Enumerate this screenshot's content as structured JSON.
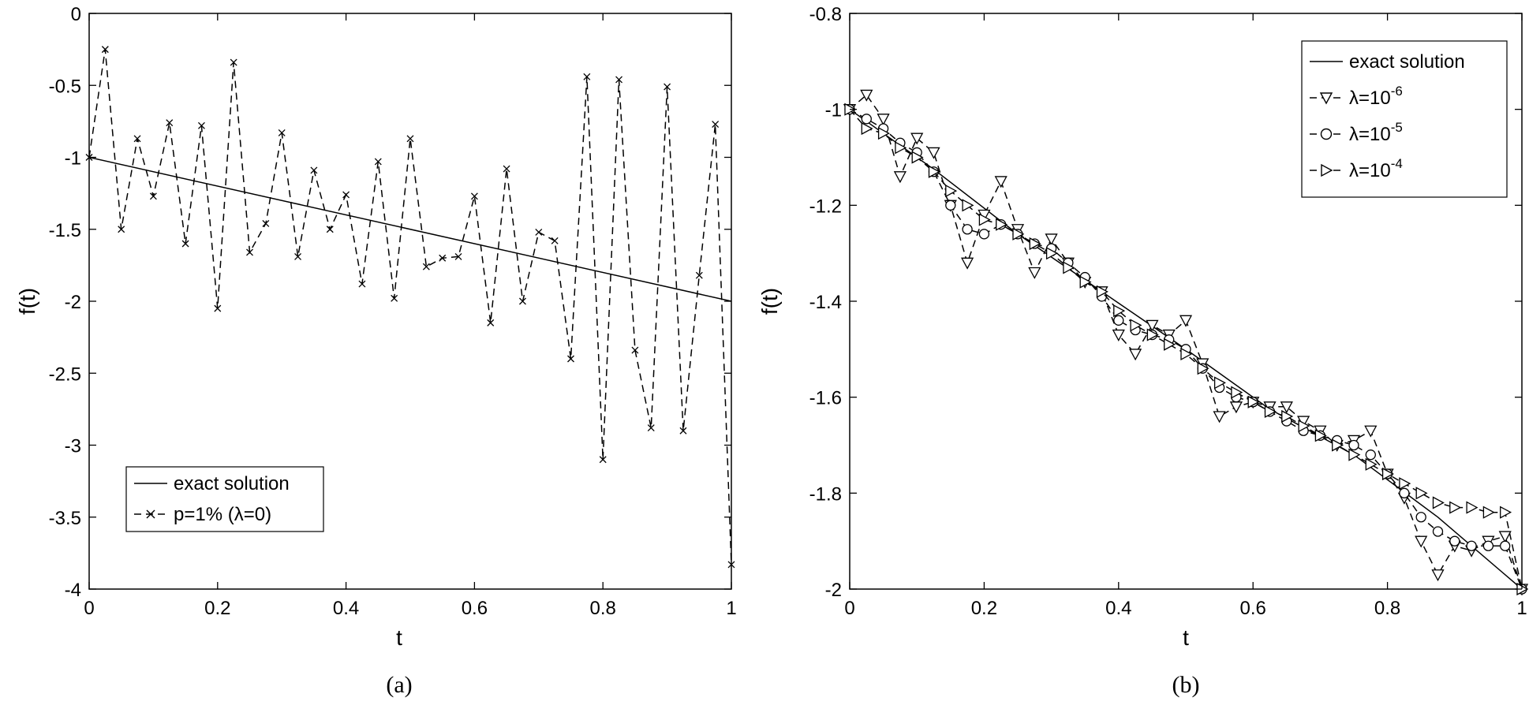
{
  "chart_data": [
    {
      "type": "line",
      "panel": "(a)",
      "xlabel": "t",
      "ylabel": "f(t)",
      "xlim": [
        0,
        1
      ],
      "ylim": [
        -4,
        0
      ],
      "xticks": [
        0,
        0.2,
        0.4,
        0.6,
        0.8,
        1
      ],
      "xtick_labels": [
        "0",
        "0.2",
        "0.4",
        "0.6",
        "0.8",
        "1"
      ],
      "yticks": [
        0,
        -0.5,
        -1,
        -1.5,
        -2,
        -2.5,
        -3,
        -3.5,
        -4
      ],
      "ytick_labels": [
        "0",
        "-0.5",
        "-1",
        "-1.5",
        "-2",
        "-2.5",
        "-3",
        "-3.5",
        "-4"
      ],
      "grid": false,
      "legend_position": "bottom-left",
      "series": [
        {
          "name": "exact solution",
          "style": "solid",
          "marker": "none",
          "x": [
            0,
            1
          ],
          "y": [
            -1,
            -2
          ]
        },
        {
          "name": "p=1% (λ=0)",
          "style": "dashed",
          "marker": "x",
          "x": [
            0,
            0.025,
            0.05,
            0.075,
            0.1,
            0.125,
            0.15,
            0.175,
            0.2,
            0.225,
            0.25,
            0.275,
            0.3,
            0.325,
            0.35,
            0.375,
            0.4,
            0.425,
            0.45,
            0.475,
            0.5,
            0.525,
            0.55,
            0.575,
            0.6,
            0.625,
            0.65,
            0.675,
            0.7,
            0.725,
            0.75,
            0.775,
            0.8,
            0.825,
            0.85,
            0.875,
            0.9,
            0.925,
            0.95,
            0.975,
            1
          ],
          "y": [
            -1.0,
            -0.25,
            -1.5,
            -0.87,
            -1.27,
            -0.76,
            -1.6,
            -0.78,
            -2.05,
            -0.34,
            -1.66,
            -1.46,
            -0.83,
            -1.69,
            -1.09,
            -1.5,
            -1.26,
            -1.88,
            -1.03,
            -1.98,
            -0.87,
            -1.76,
            -1.7,
            -1.69,
            -1.27,
            -2.15,
            -1.08,
            -2.0,
            -1.52,
            -1.58,
            -2.4,
            -0.44,
            -3.1,
            -0.46,
            -2.34,
            -2.88,
            -0.51,
            -2.9,
            -1.82,
            -0.77,
            -3.83
          ]
        }
      ]
    },
    {
      "type": "line",
      "panel": "(b)",
      "xlabel": "t",
      "ylabel": "f(t)",
      "xlim": [
        0,
        1
      ],
      "ylim": [
        -2,
        -0.8
      ],
      "xticks": [
        0,
        0.2,
        0.4,
        0.6,
        0.8,
        1
      ],
      "xtick_labels": [
        "0",
        "0.2",
        "0.4",
        "0.6",
        "0.8",
        "1"
      ],
      "yticks": [
        -0.8,
        -1,
        -1.2,
        -1.4,
        -1.6,
        -1.8,
        -2
      ],
      "ytick_labels": [
        "-0.8",
        "-1",
        "-1.2",
        "-1.4",
        "-1.6",
        "-1.8",
        "-2"
      ],
      "grid": false,
      "legend_position": "top-right",
      "series": [
        {
          "name": "exact solution",
          "style": "solid",
          "marker": "none",
          "x": [
            0,
            0.125,
            0.25,
            0.375,
            0.5,
            0.625,
            0.75,
            0.875,
            1
          ],
          "y": [
            -1.0,
            -1.125,
            -1.26,
            -1.38,
            -1.5,
            -1.625,
            -1.72,
            -1.85,
            -2.0
          ]
        },
        {
          "name": "λ=10",
          "exp": "-6",
          "style": "dashed",
          "marker": "triangle-down",
          "x": [
            0,
            0.025,
            0.05,
            0.075,
            0.1,
            0.125,
            0.15,
            0.175,
            0.2,
            0.225,
            0.25,
            0.275,
            0.3,
            0.325,
            0.35,
            0.375,
            0.4,
            0.425,
            0.45,
            0.475,
            0.5,
            0.525,
            0.55,
            0.575,
            0.6,
            0.625,
            0.65,
            0.675,
            0.7,
            0.725,
            0.75,
            0.775,
            0.8,
            0.825,
            0.85,
            0.875,
            0.9,
            0.925,
            0.95,
            0.975,
            1
          ],
          "y": [
            -1.0,
            -0.97,
            -1.02,
            -1.14,
            -1.06,
            -1.09,
            -1.2,
            -1.32,
            -1.22,
            -1.15,
            -1.25,
            -1.34,
            -1.27,
            -1.32,
            -1.36,
            -1.38,
            -1.47,
            -1.51,
            -1.45,
            -1.47,
            -1.44,
            -1.53,
            -1.64,
            -1.62,
            -1.61,
            -1.62,
            -1.62,
            -1.65,
            -1.67,
            -1.7,
            -1.69,
            -1.67,
            -1.76,
            -1.81,
            -1.9,
            -1.97,
            -1.91,
            -1.92,
            -1.9,
            -1.89,
            -2.0
          ]
        },
        {
          "name": "λ=10",
          "exp": "-5",
          "style": "dashed",
          "marker": "circle",
          "x": [
            0,
            0.025,
            0.05,
            0.075,
            0.1,
            0.125,
            0.15,
            0.175,
            0.2,
            0.225,
            0.25,
            0.275,
            0.3,
            0.325,
            0.35,
            0.375,
            0.4,
            0.425,
            0.45,
            0.475,
            0.5,
            0.525,
            0.55,
            0.575,
            0.6,
            0.625,
            0.65,
            0.675,
            0.7,
            0.725,
            0.75,
            0.775,
            0.8,
            0.825,
            0.85,
            0.875,
            0.9,
            0.925,
            0.95,
            0.975,
            1
          ],
          "y": [
            -1.0,
            -1.02,
            -1.04,
            -1.07,
            -1.09,
            -1.13,
            -1.2,
            -1.25,
            -1.26,
            -1.24,
            -1.26,
            -1.28,
            -1.29,
            -1.32,
            -1.35,
            -1.39,
            -1.44,
            -1.46,
            -1.47,
            -1.48,
            -1.5,
            -1.54,
            -1.58,
            -1.6,
            -1.61,
            -1.63,
            -1.65,
            -1.67,
            -1.68,
            -1.69,
            -1.7,
            -1.72,
            -1.76,
            -1.8,
            -1.85,
            -1.88,
            -1.9,
            -1.91,
            -1.91,
            -1.91,
            -2.0
          ]
        },
        {
          "name": "λ=10",
          "exp": "-4",
          "style": "dashed",
          "marker": "triangle-right",
          "x": [
            0,
            0.025,
            0.05,
            0.075,
            0.1,
            0.125,
            0.15,
            0.175,
            0.2,
            0.225,
            0.25,
            0.275,
            0.3,
            0.325,
            0.35,
            0.375,
            0.4,
            0.425,
            0.45,
            0.475,
            0.5,
            0.525,
            0.55,
            0.575,
            0.6,
            0.625,
            0.65,
            0.675,
            0.7,
            0.725,
            0.75,
            0.775,
            0.8,
            0.825,
            0.85,
            0.875,
            0.9,
            0.925,
            0.95,
            0.975,
            1
          ],
          "y": [
            -1.0,
            -1.04,
            -1.05,
            -1.08,
            -1.1,
            -1.13,
            -1.17,
            -1.2,
            -1.23,
            -1.24,
            -1.26,
            -1.28,
            -1.3,
            -1.33,
            -1.36,
            -1.38,
            -1.42,
            -1.45,
            -1.47,
            -1.49,
            -1.51,
            -1.54,
            -1.57,
            -1.59,
            -1.61,
            -1.63,
            -1.64,
            -1.66,
            -1.68,
            -1.7,
            -1.72,
            -1.74,
            -1.76,
            -1.78,
            -1.8,
            -1.82,
            -1.83,
            -1.83,
            -1.84,
            -1.84,
            -2.0
          ]
        }
      ]
    }
  ]
}
